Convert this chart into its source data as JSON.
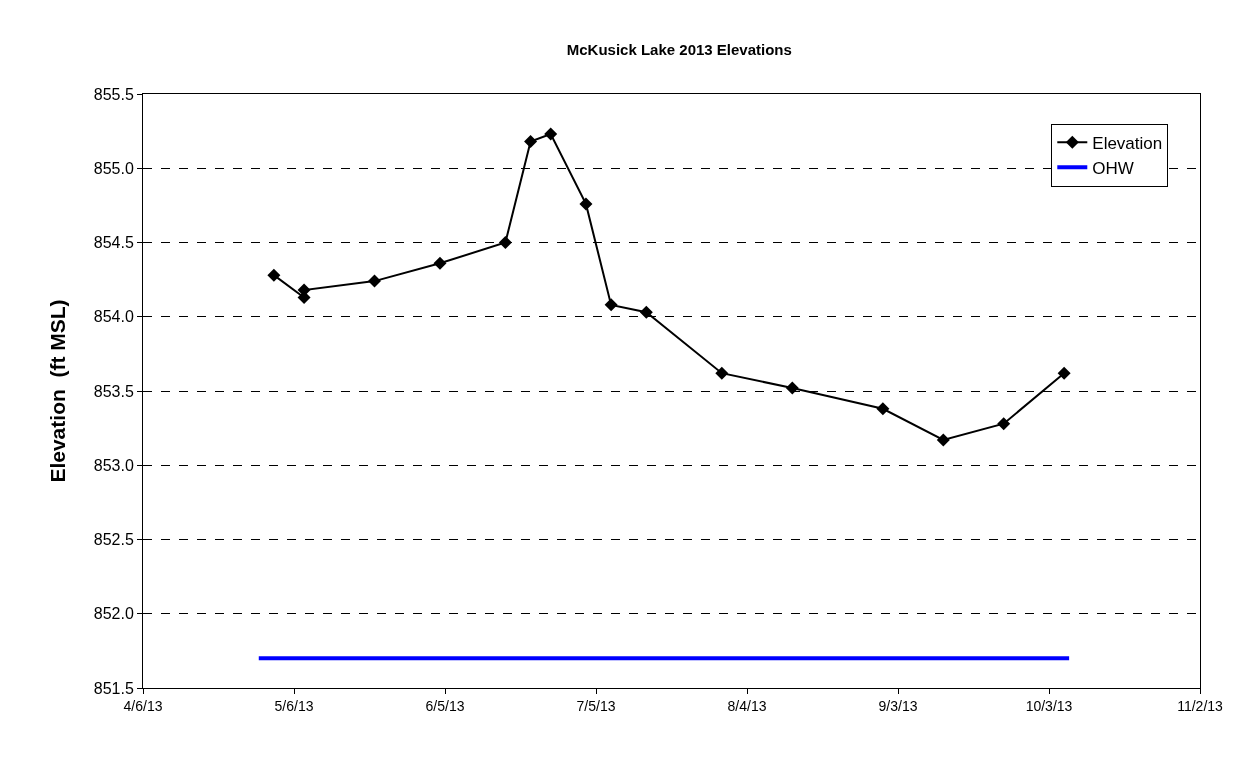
{
  "chart_data": {
    "type": "line",
    "title": "McKusick Lake 2013 Elevations",
    "ylabel": "Elevation  (ft MSL)",
    "series": [
      {
        "name": "Elevation",
        "color": "#000000",
        "marker": "diamond",
        "x": [
          "2013-05-02",
          "2013-05-08",
          "2013-05-08",
          "2013-05-22",
          "2013-06-04",
          "2013-06-17",
          "2013-06-22",
          "2013-06-26",
          "2013-07-03",
          "2013-07-08",
          "2013-07-15",
          "2013-07-30",
          "2013-08-13",
          "2013-08-31",
          "2013-09-12",
          "2013-09-24",
          "2013-10-06"
        ],
        "values": [
          854.28,
          854.13,
          854.18,
          854.24,
          854.36,
          854.5,
          855.18,
          855.23,
          854.76,
          854.08,
          854.03,
          853.62,
          853.52,
          853.38,
          853.17,
          853.28,
          853.62
        ]
      },
      {
        "name": "OHW",
        "color": "#0000ff",
        "marker": "none",
        "x": [
          "2013-04-29",
          "2013-10-07"
        ],
        "values": [
          851.7,
          851.7
        ]
      }
    ],
    "xlim": [
      "2013-04-06",
      "2013-11-02"
    ],
    "xticks": [
      {
        "value": "2013-04-06",
        "label": "4/6/13"
      },
      {
        "value": "2013-05-06",
        "label": "5/6/13"
      },
      {
        "value": "2013-06-05",
        "label": "6/5/13"
      },
      {
        "value": "2013-07-05",
        "label": "7/5/13"
      },
      {
        "value": "2013-08-04",
        "label": "8/4/13"
      },
      {
        "value": "2013-09-03",
        "label": "9/3/13"
      },
      {
        "value": "2013-10-03",
        "label": "10/3/13"
      },
      {
        "value": "2013-11-02",
        "label": "11/2/13"
      }
    ],
    "ylim": [
      851.5,
      855.5
    ],
    "yticks": [
      851.5,
      {
        "value": 852,
        "label": "852.0"
      },
      852.5,
      {
        "value": 853,
        "label": "853.0"
      },
      853.5,
      {
        "value": 854,
        "label": "854.0"
      },
      854.5,
      {
        "value": 855,
        "label": "855.0"
      },
      855.5
    ],
    "grid": "y",
    "legend": "top right",
    "line_style": "solid"
  }
}
